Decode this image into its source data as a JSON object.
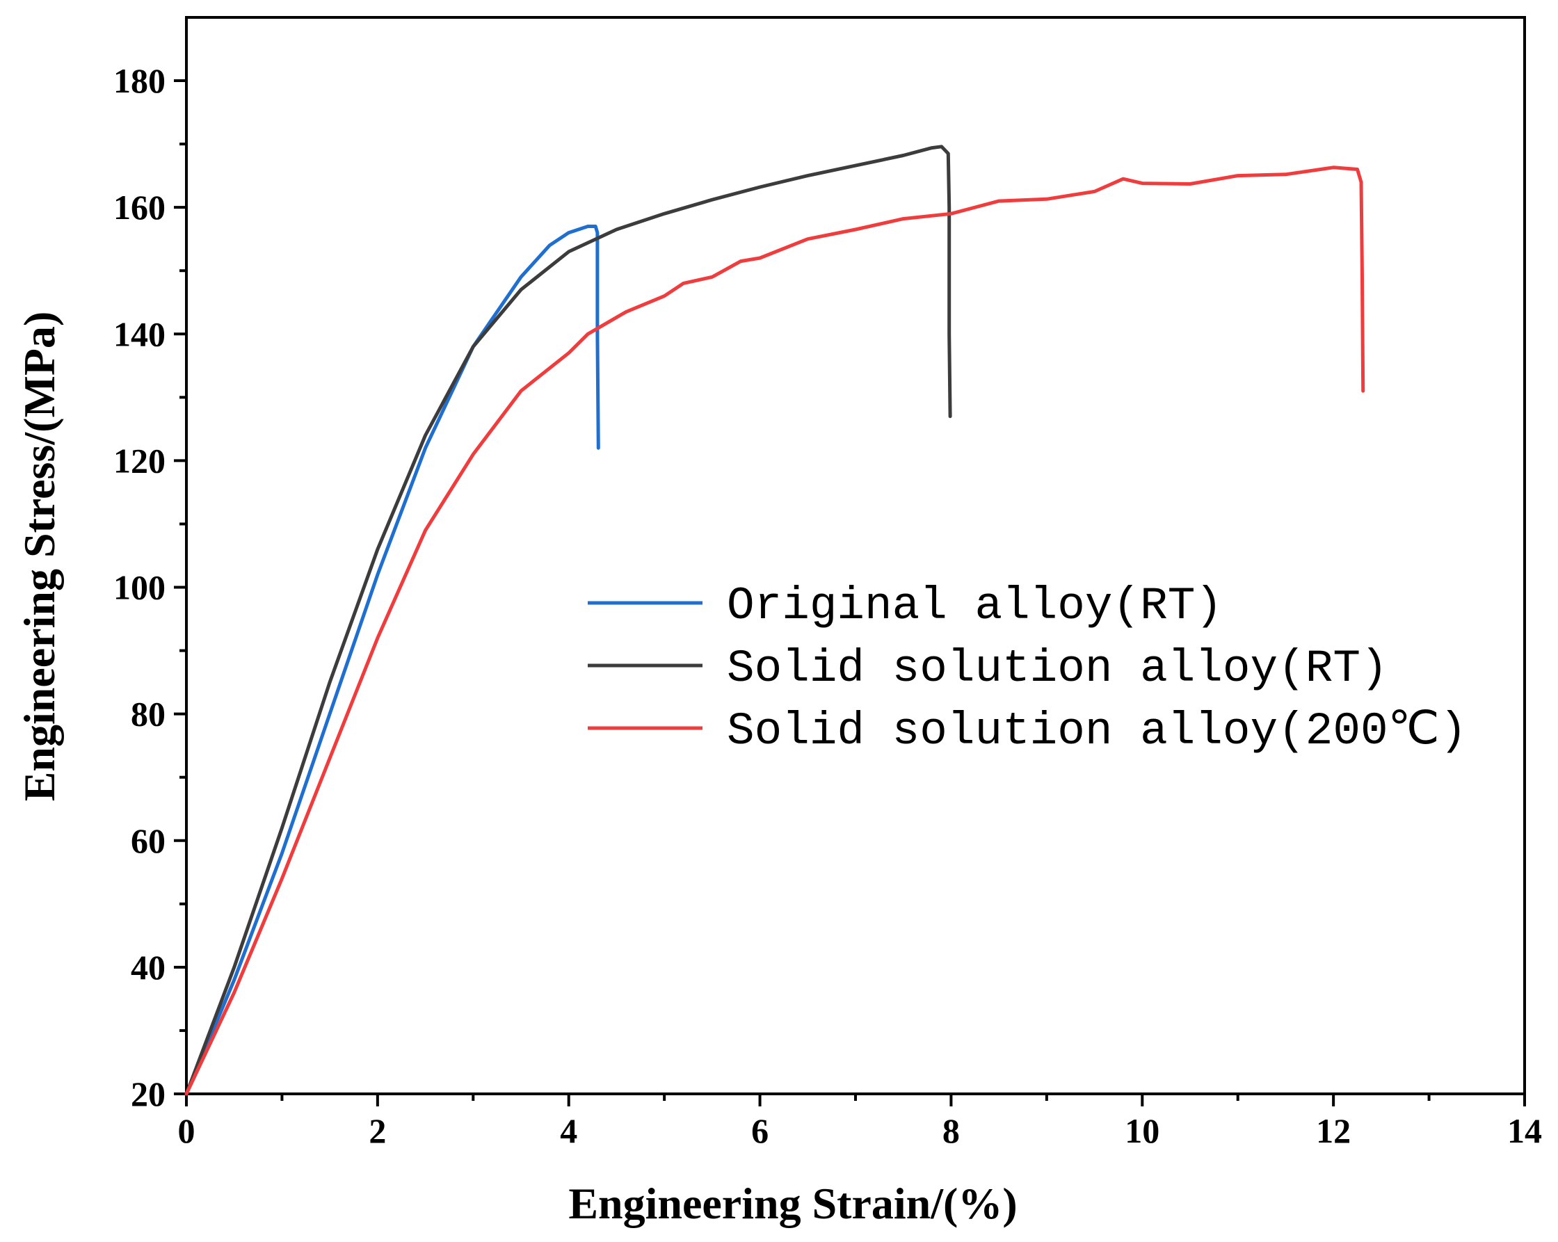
{
  "chart_data": {
    "type": "line",
    "title": "",
    "xlabel": "Engineering Strain/(%)",
    "ylabel": "Engineering Stress/(MPa)",
    "xlim": [
      0,
      14
    ],
    "ylim": [
      20,
      190
    ],
    "x_ticks": [
      0,
      2,
      4,
      6,
      8,
      10,
      12,
      14
    ],
    "y_ticks": [
      20,
      40,
      60,
      80,
      100,
      120,
      140,
      160,
      180
    ],
    "x_tick_labels": [
      "0",
      "2",
      "4",
      "6",
      "8",
      "10",
      "12",
      "14"
    ],
    "y_tick_labels": [
      "20",
      "40",
      "60",
      "80",
      "100",
      "120",
      "140",
      "160",
      "180"
    ],
    "grid": false,
    "legend_position": "center-right",
    "series": [
      {
        "name": "Original alloy(RT)",
        "color": "#1f6fd1",
        "points": [
          [
            0,
            20
          ],
          [
            0.5,
            38
          ],
          [
            1,
            58
          ],
          [
            1.5,
            80
          ],
          [
            2,
            102
          ],
          [
            2.5,
            122
          ],
          [
            3,
            138
          ],
          [
            3.5,
            149
          ],
          [
            3.8,
            154
          ],
          [
            4.0,
            156
          ],
          [
            4.2,
            157
          ],
          [
            4.28,
            157
          ],
          [
            4.3,
            156
          ],
          [
            4.3,
            140
          ],
          [
            4.31,
            122
          ]
        ]
      },
      {
        "name": "Solid solution alloy(RT)",
        "color": "#3c3c3c",
        "points": [
          [
            0,
            20
          ],
          [
            0.5,
            40
          ],
          [
            1,
            62
          ],
          [
            1.5,
            85
          ],
          [
            2,
            106
          ],
          [
            2.5,
            124
          ],
          [
            3,
            138
          ],
          [
            3.5,
            147
          ],
          [
            4,
            153
          ],
          [
            4.5,
            156.5
          ],
          [
            5,
            159
          ],
          [
            5.5,
            161.2
          ],
          [
            6,
            163.2
          ],
          [
            6.5,
            165
          ],
          [
            7,
            166.6
          ],
          [
            7.5,
            168.2
          ],
          [
            7.8,
            169.4
          ],
          [
            7.9,
            169.6
          ],
          [
            7.97,
            168.5
          ],
          [
            7.98,
            160
          ],
          [
            7.98,
            140
          ],
          [
            7.99,
            127
          ]
        ]
      },
      {
        "name": "Solid solution alloy(200℃)",
        "color": "#f03c3c",
        "points": [
          [
            0,
            20
          ],
          [
            0.5,
            36
          ],
          [
            1,
            54
          ],
          [
            1.5,
            73
          ],
          [
            2,
            92
          ],
          [
            2.5,
            109
          ],
          [
            3,
            121
          ],
          [
            3.5,
            131
          ],
          [
            4,
            137
          ],
          [
            4.2,
            140
          ],
          [
            4.6,
            143.5
          ],
          [
            5,
            146
          ],
          [
            5.2,
            148
          ],
          [
            5.5,
            149
          ],
          [
            5.8,
            151.5
          ],
          [
            6,
            152
          ],
          [
            6.5,
            155
          ],
          [
            7,
            156.5
          ],
          [
            7.5,
            158.2
          ],
          [
            8,
            159
          ],
          [
            8.5,
            161
          ],
          [
            9,
            161.3
          ],
          [
            9.5,
            162.5
          ],
          [
            9.8,
            164.5
          ],
          [
            10,
            163.8
          ],
          [
            10.5,
            163.7
          ],
          [
            11,
            165
          ],
          [
            11.5,
            165.2
          ],
          [
            12,
            166.3
          ],
          [
            12.25,
            166
          ],
          [
            12.29,
            164
          ],
          [
            12.3,
            150
          ],
          [
            12.31,
            131
          ]
        ]
      }
    ]
  }
}
